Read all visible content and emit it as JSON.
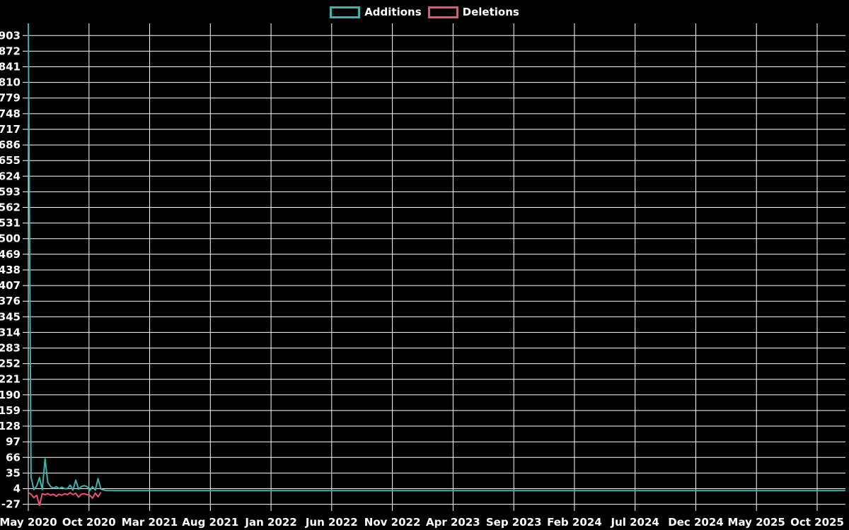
{
  "chart_data": {
    "type": "line",
    "legend_position": "top-center",
    "background": "#000000",
    "grid": true,
    "grid_color": "#ffffff",
    "label_color": "#ffffff",
    "legend": [
      {
        "name": "Additions",
        "color": "#3cb4ad"
      },
      {
        "name": "Deletions",
        "color": "#ec5272"
      }
    ],
    "x_axis": {
      "tick_labels": [
        "May 2020",
        "Oct 2020",
        "Mar 2021",
        "Aug 2021",
        "Jan 2022",
        "Jun 2022",
        "Nov 2022",
        "Apr 2023",
        "Sep 2023",
        "Feb 2024",
        "Jul 2024",
        "Dec 2024",
        "May 2025",
        "Oct 2025"
      ],
      "unit": "week",
      "weeks_per_tick": 21.74
    },
    "y_axis": {
      "ticks": [
        903,
        872,
        841,
        810,
        779,
        748,
        717,
        686,
        655,
        624,
        593,
        562,
        531,
        500,
        469,
        438,
        407,
        376,
        345,
        314,
        283,
        252,
        221,
        190,
        159,
        128,
        97,
        66,
        35,
        4,
        -27
      ],
      "tick_step": 31,
      "plot_max": 927,
      "plot_min": -31
    },
    "series": [
      {
        "name": "Additions",
        "color": "#3cb4ad",
        "points_weekly": [
          [
            0,
            926
          ],
          [
            1,
            26
          ],
          [
            2,
            2
          ],
          [
            3,
            9
          ],
          [
            4,
            26
          ],
          [
            5,
            2
          ],
          [
            6,
            63
          ],
          [
            7,
            16
          ],
          [
            8,
            8
          ],
          [
            9,
            5
          ],
          [
            10,
            8
          ],
          [
            11,
            4
          ],
          [
            12,
            7
          ],
          [
            13,
            4
          ],
          [
            14,
            4
          ],
          [
            15,
            11
          ],
          [
            16,
            1
          ],
          [
            17,
            21
          ],
          [
            18,
            3
          ],
          [
            19,
            8
          ],
          [
            20,
            10
          ],
          [
            21,
            8
          ],
          [
            22,
            0
          ],
          [
            23,
            8
          ],
          [
            24,
            1
          ],
          [
            25,
            24
          ],
          [
            26,
            3
          ],
          [
            28,
            0
          ],
          [
            292.7,
            0
          ]
        ]
      },
      {
        "name": "Deletions",
        "color": "#ec5272",
        "points_weekly": [
          [
            0,
            -4
          ],
          [
            1,
            -7
          ],
          [
            2,
            -14
          ],
          [
            3,
            -9
          ],
          [
            4,
            -29
          ],
          [
            5,
            -6
          ],
          [
            6,
            -8
          ],
          [
            7,
            -6
          ],
          [
            8,
            -9
          ],
          [
            9,
            -7
          ],
          [
            10,
            -11
          ],
          [
            11,
            -7
          ],
          [
            12,
            -9
          ],
          [
            13,
            -6
          ],
          [
            14,
            -8
          ],
          [
            15,
            -4
          ],
          [
            16,
            -8
          ],
          [
            17,
            -5
          ],
          [
            18,
            -13
          ],
          [
            19,
            -7
          ],
          [
            20,
            -6
          ],
          [
            21,
            -8
          ],
          [
            22,
            -9
          ],
          [
            23,
            -15
          ],
          [
            24,
            -5
          ],
          [
            25,
            -12
          ],
          [
            26,
            -3
          ]
        ]
      }
    ]
  }
}
